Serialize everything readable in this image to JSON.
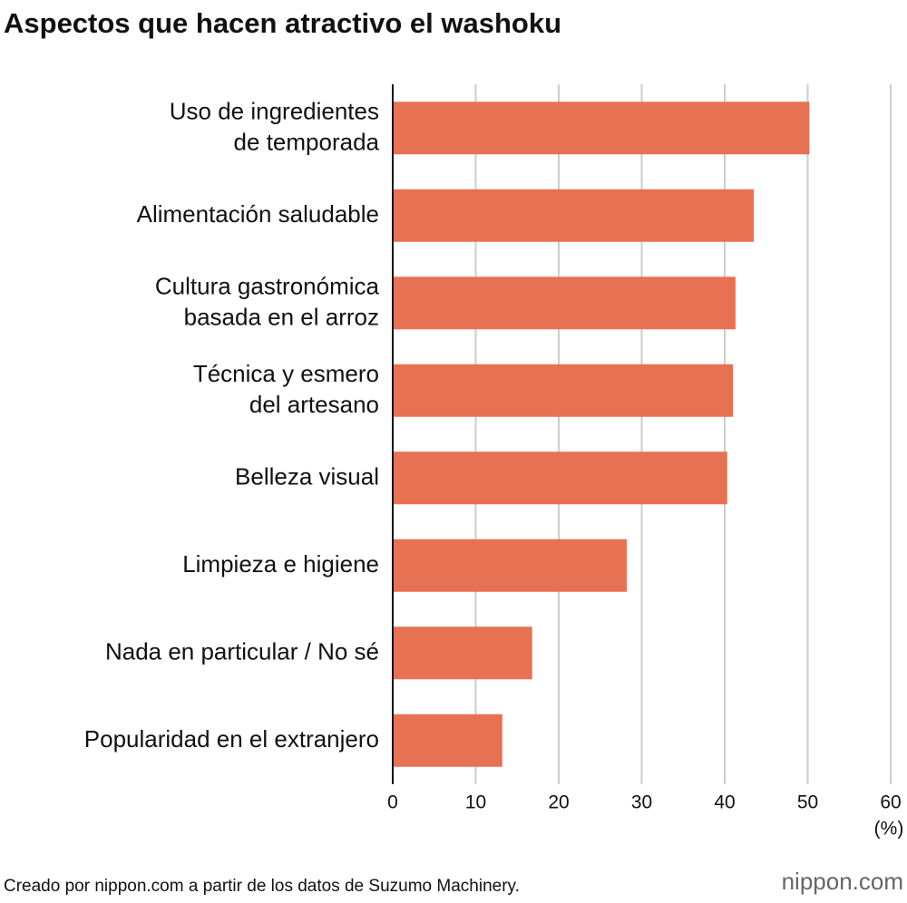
{
  "chart_data": {
    "type": "hbar",
    "title": "Aspectos que hacen atractivo el washoku",
    "categories": [
      "Uso de ingredientes\nde temporada",
      "Alimentación saludable",
      "Cultura gastronómica\nbasada en el arroz",
      "Técnica y esmero\ndel artesano",
      "Belleza visual",
      "Limpieza e higiene",
      "Nada en particular / No sé",
      "Popularidad en el extranjero"
    ],
    "values": [
      50.2,
      43.5,
      41.3,
      41.0,
      40.3,
      28.2,
      16.8,
      13.2
    ],
    "color": "#e77153",
    "xlim": [
      0,
      60
    ],
    "xticks": [
      0,
      10,
      20,
      30,
      40,
      50,
      60
    ],
    "x_unit": "(%)",
    "grid": true,
    "source": "Creado por nippon.com a partir de los datos de Suzumo Machinery.",
    "logo": "nippon.com"
  }
}
